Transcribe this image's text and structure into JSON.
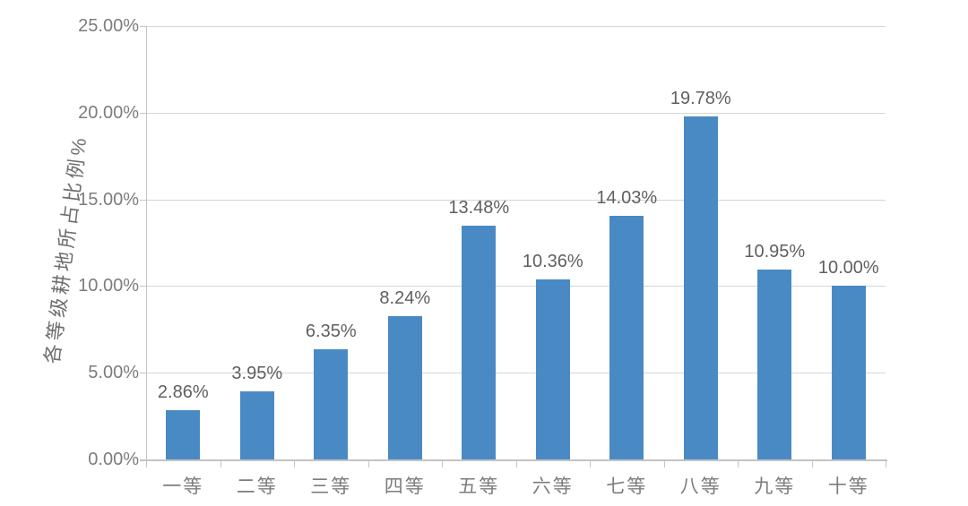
{
  "chart_data": {
    "type": "bar",
    "title": "",
    "xlabel": "",
    "ylabel": "各等级耕地所占比例%",
    "categories": [
      "一等",
      "二等",
      "三等",
      "四等",
      "五等",
      "六等",
      "七等",
      "八等",
      "九等",
      "十等"
    ],
    "values": [
      2.86,
      3.95,
      6.35,
      8.24,
      13.48,
      10.36,
      14.03,
      19.78,
      10.95,
      10.0
    ],
    "data_labels": [
      "2.86%",
      "3.95%",
      "6.35%",
      "8.24%",
      "13.48%",
      "10.36%",
      "14.03%",
      "19.78%",
      "10.95%",
      "10.00%"
    ],
    "ytick_labels": [
      "0.00%",
      "5.00%",
      "10.00%",
      "15.00%",
      "20.00%",
      "25.00%"
    ],
    "ytick_values": [
      0,
      5,
      10,
      15,
      20,
      25
    ],
    "ylim": [
      0,
      25
    ],
    "grid": "horizontal",
    "legend": "none",
    "bar_color": "#4a8ac4",
    "gridline_color": "#d6d6d6",
    "axis_color": "#c3c3c3",
    "tick_text_color": "#7d7d7d",
    "data_label_color": "#5f5f5f"
  }
}
